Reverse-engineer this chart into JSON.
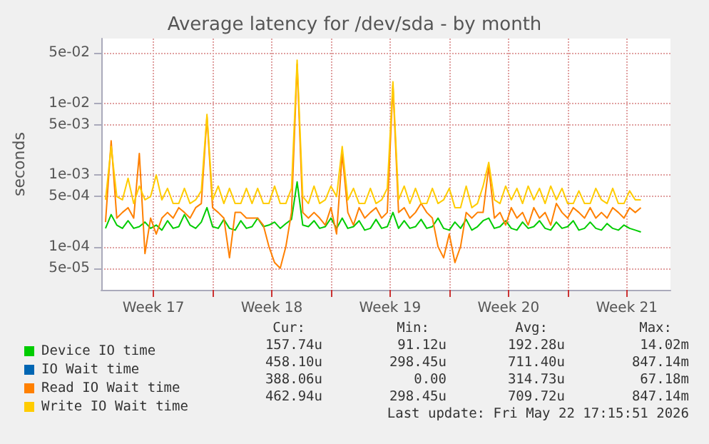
{
  "chart_data": {
    "type": "line",
    "title": "Average latency for /dev/sda - by month",
    "ylabel": "seconds",
    "x": [
      "2026-04-20T16:00",
      "2026-04-21T00:00",
      "2026-04-21T08:00",
      "2026-04-21T16:00",
      "2026-04-22T00:00",
      "2026-04-22T08:00",
      "2026-04-22T16:00",
      "2026-04-23T00:00",
      "2026-04-23T08:00",
      "2026-04-23T16:00",
      "2026-04-24T00:00",
      "2026-04-24T08:00",
      "2026-04-24T16:00",
      "2026-04-25T00:00",
      "2026-04-25T08:00",
      "2026-04-25T16:00",
      "2026-04-26T00:00",
      "2026-04-26T08:00",
      "2026-04-26T16:00",
      "2026-04-27T00:00",
      "2026-04-27T08:00",
      "2026-04-27T16:00",
      "2026-04-28T00:00",
      "2026-04-28T08:00",
      "2026-04-28T16:00",
      "2026-04-29T00:00",
      "2026-04-29T08:00",
      "2026-04-29T16:00",
      "2026-04-30T00:00",
      "2026-04-30T08:00",
      "2026-04-30T16:00",
      "2026-05-01T00:00",
      "2026-05-01T08:00",
      "2026-05-01T16:00",
      "2026-05-02T00:00",
      "2026-05-02T08:00",
      "2026-05-02T16:00",
      "2026-05-03T00:00",
      "2026-05-03T08:00",
      "2026-05-03T16:00",
      "2026-05-04T00:00",
      "2026-05-04T08:00",
      "2026-05-04T16:00",
      "2026-05-05T00:00",
      "2026-05-05T08:00",
      "2026-05-05T16:00",
      "2026-05-06T00:00",
      "2026-05-06T08:00",
      "2026-05-06T16:00",
      "2026-05-07T00:00",
      "2026-05-07T08:00",
      "2026-05-07T16:00",
      "2026-05-08T00:00",
      "2026-05-08T08:00",
      "2026-05-08T16:00",
      "2026-05-09T00:00",
      "2026-05-09T08:00",
      "2026-05-09T16:00",
      "2026-05-10T00:00",
      "2026-05-10T08:00",
      "2026-05-10T16:00",
      "2026-05-11T00:00",
      "2026-05-11T08:00",
      "2026-05-11T16:00",
      "2026-05-12T00:00",
      "2026-05-12T08:00",
      "2026-05-12T16:00",
      "2026-05-13T00:00",
      "2026-05-13T08:00",
      "2026-05-13T16:00",
      "2026-05-14T00:00",
      "2026-05-14T08:00",
      "2026-05-14T16:00",
      "2026-05-15T00:00",
      "2026-05-15T08:00",
      "2026-05-15T16:00",
      "2026-05-16T00:00",
      "2026-05-16T08:00",
      "2026-05-16T16:00",
      "2026-05-17T00:00",
      "2026-05-17T08:00",
      "2026-05-17T16:00",
      "2026-05-18T00:00",
      "2026-05-18T08:00",
      "2026-05-18T16:00",
      "2026-05-19T00:00",
      "2026-05-19T08:00",
      "2026-05-19T16:00",
      "2026-05-20T00:00",
      "2026-05-20T08:00",
      "2026-05-20T16:00",
      "2026-05-21T00:00",
      "2026-05-21T08:00",
      "2026-05-21T16:00",
      "2026-05-22T00:00",
      "2026-05-22T08:00"
    ],
    "series": [
      {
        "name": "Device IO time",
        "color": "#00cc00",
        "values": [
          0.00018,
          0.00028,
          0.0002,
          0.00018,
          0.00023,
          0.00018,
          0.00019,
          0.00022,
          0.00018,
          0.0002,
          0.00017,
          0.00023,
          0.00018,
          0.00019,
          0.00028,
          0.0002,
          0.00018,
          0.00022,
          0.00035,
          0.00019,
          0.00018,
          0.00024,
          0.00018,
          0.00017,
          0.00023,
          0.00018,
          0.00019,
          0.00025,
          0.00019,
          0.0002,
          0.00022,
          0.00018,
          0.00021,
          0.00024,
          0.0008,
          0.0002,
          0.00019,
          0.00023,
          0.00018,
          0.00019,
          0.00025,
          0.00018,
          0.00025,
          0.00018,
          0.00019,
          0.00023,
          0.00017,
          0.00018,
          0.00024,
          0.00018,
          0.00019,
          0.0003,
          0.00018,
          0.00023,
          0.00018,
          0.00019,
          0.00024,
          0.00018,
          0.00019,
          0.00025,
          0.00018,
          0.00017,
          0.00022,
          0.00018,
          0.00024,
          0.00017,
          0.00019,
          0.00023,
          0.00025,
          0.00018,
          0.00019,
          0.00023,
          0.00018,
          0.00017,
          0.00022,
          0.00018,
          0.00019,
          0.00023,
          0.00018,
          0.00017,
          0.00022,
          0.00018,
          0.00019,
          0.00023,
          0.00017,
          0.00018,
          0.00022,
          0.00018,
          0.00017,
          0.00021,
          0.00018,
          0.00017,
          0.0002,
          0.00018,
          0.00017,
          0.00016
        ]
      },
      {
        "name": "IO Wait time",
        "color": "#0066b3",
        "values": [
          null,
          null,
          null,
          null,
          null,
          null,
          null,
          null,
          null,
          null,
          null,
          null,
          null,
          null,
          null,
          null,
          null,
          null,
          null,
          null,
          null,
          null,
          null,
          null,
          null,
          null,
          null,
          null,
          null,
          null,
          null,
          null,
          null,
          null,
          null,
          null,
          null,
          null,
          null,
          null,
          null,
          null,
          null,
          null,
          null,
          null,
          null,
          null,
          null,
          null,
          null,
          null,
          null,
          null,
          null,
          null,
          null,
          null,
          null,
          null,
          null,
          null,
          null,
          null,
          null,
          null,
          null,
          null,
          null,
          null,
          null,
          null,
          null,
          null,
          null,
          null,
          null,
          null,
          null,
          null,
          null,
          null,
          null,
          null,
          null,
          null,
          null,
          null,
          null,
          null,
          null,
          null,
          null,
          null,
          null,
          null
        ]
      },
      {
        "name": "Read IO Wait time",
        "color": "#ff8000",
        "values": [
          0.00022,
          0.003,
          0.00025,
          0.0003,
          0.00035,
          0.00025,
          0.002,
          8e-05,
          0.00025,
          0.00015,
          0.00025,
          0.0003,
          0.00025,
          0.00035,
          0.0003,
          0.00025,
          0.00035,
          0.0004,
          0.0065,
          0.00035,
          0.0003,
          0.00025,
          7e-05,
          0.0003,
          0.0003,
          0.00025,
          0.00025,
          0.00025,
          0.0002,
          0.0001,
          6e-05,
          5e-05,
          0.0001,
          0.0003,
          0.035,
          0.0003,
          0.00025,
          0.0003,
          0.00025,
          0.0002,
          0.00035,
          0.00015,
          0.002,
          0.0003,
          0.0002,
          0.00035,
          0.00025,
          0.0003,
          0.00035,
          0.00025,
          0.0003,
          0.018,
          0.0003,
          0.00035,
          0.00025,
          0.0003,
          0.0004,
          0.0003,
          0.00025,
          0.0001,
          7e-05,
          0.00015,
          6e-05,
          0.0001,
          0.0003,
          0.00025,
          0.0003,
          0.0003,
          0.0013,
          0.00025,
          0.0003,
          0.0002,
          0.00035,
          0.00025,
          0.0003,
          0.0002,
          0.00035,
          0.00025,
          0.0003,
          0.0002,
          0.0004,
          0.0003,
          0.00025,
          0.00035,
          0.0003,
          0.00025,
          0.00035,
          0.00025,
          0.0003,
          0.00025,
          0.00035,
          0.0003,
          0.00025,
          0.00035,
          0.0003,
          0.00035
        ]
      },
      {
        "name": "Write IO Wait time",
        "color": "#ffcc00",
        "values": [
          0.00045,
          0.0025,
          0.0005,
          0.00045,
          0.0009,
          0.0004,
          0.0007,
          0.00045,
          0.0005,
          0.001,
          0.00045,
          0.00065,
          0.0004,
          0.0004,
          0.00065,
          0.0004,
          0.00045,
          0.0006,
          0.007,
          0.00045,
          0.0007,
          0.0004,
          0.00065,
          0.0004,
          0.0004,
          0.00065,
          0.0004,
          0.00065,
          0.0004,
          0.0004,
          0.0007,
          0.0004,
          0.0004,
          0.00065,
          0.04,
          0.0005,
          0.0004,
          0.0007,
          0.0004,
          0.00045,
          0.0007,
          0.0005,
          0.0025,
          0.00045,
          0.00065,
          0.0004,
          0.0004,
          0.00065,
          0.0004,
          0.00045,
          0.00065,
          0.02,
          0.00045,
          0.0007,
          0.0004,
          0.00065,
          0.0004,
          0.0004,
          0.00065,
          0.0004,
          0.00045,
          0.00065,
          0.00035,
          0.00035,
          0.0007,
          0.00035,
          0.0004,
          0.0007,
          0.0015,
          0.00045,
          0.0004,
          0.0007,
          0.00045,
          0.00065,
          0.0004,
          0.0007,
          0.00045,
          0.00065,
          0.0004,
          0.0007,
          0.00045,
          0.00065,
          0.0004,
          0.0004,
          0.0006,
          0.0004,
          0.0004,
          0.00065,
          0.00045,
          0.0004,
          0.00065,
          0.0004,
          0.0004,
          0.0006,
          0.00045,
          0.00045
        ]
      }
    ],
    "xlim": [
      "2026-04-20T10:00",
      "2026-05-24T02:00"
    ],
    "xticks": [
      {
        "value": "2026-04-23T12:00",
        "label": "Week 17"
      },
      {
        "value": "2026-04-27T00:00",
        "label": null
      },
      {
        "value": "2026-04-30T12:00",
        "label": "Week 18"
      },
      {
        "value": "2026-05-04T00:00",
        "label": null
      },
      {
        "value": "2026-05-07T12:00",
        "label": "Week 19"
      },
      {
        "value": "2026-05-11T00:00",
        "label": null
      },
      {
        "value": "2026-05-14T12:00",
        "label": "Week 20"
      },
      {
        "value": "2026-05-18T00:00",
        "label": null
      },
      {
        "value": "2026-05-21T12:00",
        "label": "Week 21"
      }
    ],
    "ylim": [
      2.5e-05,
      0.08
    ],
    "yticks": [
      {
        "value": 5e-05,
        "label": "5e-05"
      },
      {
        "value": 0.0001,
        "label": "1e-04"
      },
      {
        "value": 0.0005,
        "label": "5e-04"
      },
      {
        "value": 0.001,
        "label": "1e-03"
      },
      {
        "value": 0.005,
        "label": "5e-03"
      },
      {
        "value": 0.01,
        "label": "1e-02"
      },
      {
        "value": 0.05,
        "label": "5e-02"
      }
    ],
    "log": "y",
    "grid": true,
    "legend": "bottom",
    "marker": "none",
    "line_style": "solid",
    "annotations": [
      "Cur:",
      "Min:",
      "Avg:",
      "Max:",
      "157.74u",
      "91.12u",
      "192.28u",
      "14.02m",
      "458.10u",
      "298.45u",
      "711.40u",
      "847.14m",
      "388.06u",
      "0.00",
      "314.73u",
      "67.18m",
      "462.94u",
      "298.45u",
      "709.72u",
      "847.14m",
      "Last update: Fri May 22 17:15:51 2026"
    ]
  }
}
